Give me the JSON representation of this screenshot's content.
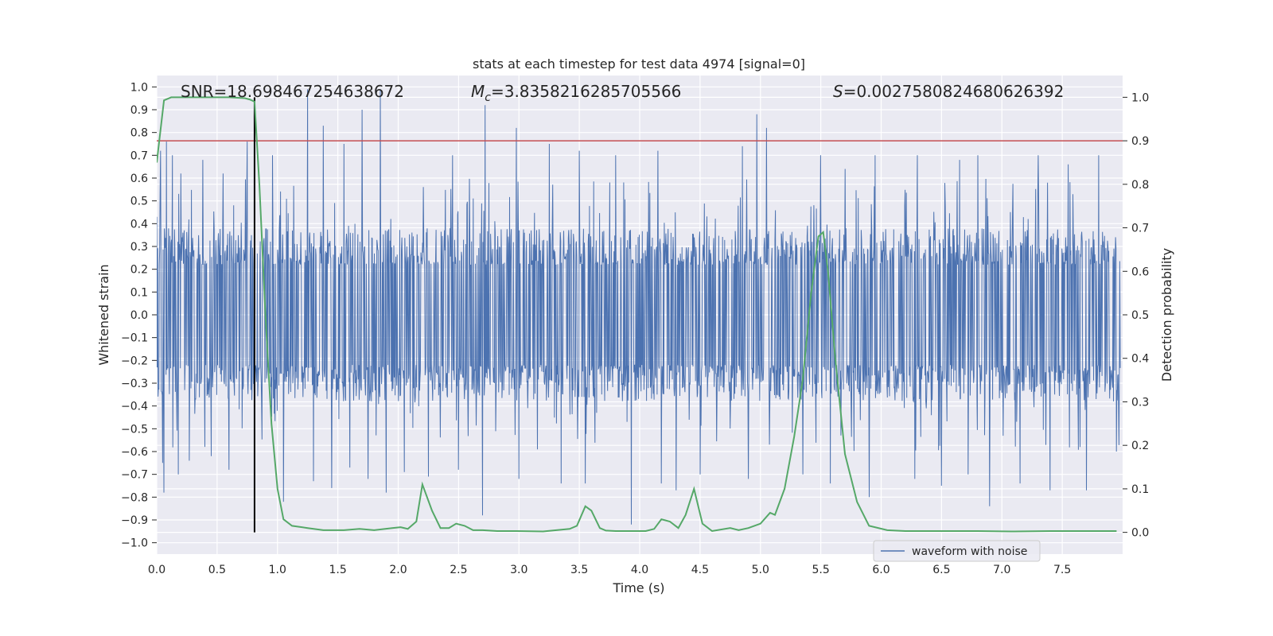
{
  "chart_data": {
    "type": "line",
    "title": "stats at each timestep for test data 4974 [signal=0]",
    "xlabel": "Time (s)",
    "ylabel_left": "Whitened strain",
    "ylabel_right": "Detection probability",
    "xlim": [
      0,
      8.0
    ],
    "ylim_left": [
      -1.05,
      1.05
    ],
    "ylim_right": [
      -0.05,
      1.05
    ],
    "xticks": [
      "0.0",
      "0.5",
      "1.0",
      "1.5",
      "2.0",
      "2.5",
      "3.0",
      "3.5",
      "4.0",
      "4.5",
      "5.0",
      "5.5",
      "6.0",
      "6.5",
      "7.0",
      "7.5"
    ],
    "yticks_left": [
      "−1.0",
      "−0.9",
      "−0.8",
      "−0.7",
      "−0.6",
      "−0.5",
      "−0.4",
      "−0.3",
      "−0.2",
      "−0.1",
      "0.0",
      "0.1",
      "0.2",
      "0.3",
      "0.4",
      "0.5",
      "0.6",
      "0.7",
      "0.8",
      "0.9",
      "1.0"
    ],
    "yticks_right": [
      "0.0",
      "0.1",
      "0.2",
      "0.3",
      "0.4",
      "0.5",
      "0.6",
      "0.7",
      "0.8",
      "0.9",
      "1.0"
    ],
    "grid": true,
    "legend_placement": "lower-right",
    "annotations": {
      "snr": "SNR=18.698467254638672",
      "mc_symbol": "M",
      "mc_subscript": "c",
      "mc_value": "=3.8358216285705566",
      "s_symbol": "S",
      "s_value": "=0.0027580824680626392"
    },
    "threshold_right": 0.9,
    "vertical_marker_x": 0.81,
    "series": [
      {
        "name": "waveform with noise",
        "axis": "left",
        "color": "#4c72b0",
        "spikes_high": [
          [
            0.03,
            0.72
          ],
          [
            0.08,
            0.76
          ],
          [
            0.13,
            0.7
          ],
          [
            0.2,
            0.62
          ],
          [
            0.27,
            0.65
          ],
          [
            0.38,
            0.68
          ],
          [
            0.55,
            0.62
          ],
          [
            0.75,
            0.76
          ],
          [
            0.96,
            0.7
          ],
          [
            1.25,
            0.99
          ],
          [
            1.38,
            0.83
          ],
          [
            1.55,
            0.75
          ],
          [
            1.7,
            0.9
          ],
          [
            1.85,
            0.99
          ],
          [
            2.05,
            0.78
          ],
          [
            2.25,
            0.72
          ],
          [
            2.45,
            0.7
          ],
          [
            2.72,
            0.92
          ],
          [
            2.98,
            0.82
          ],
          [
            3.25,
            0.75
          ],
          [
            3.5,
            0.72
          ],
          [
            3.8,
            0.7
          ],
          [
            4.15,
            0.72
          ],
          [
            4.5,
            0.68
          ],
          [
            4.85,
            0.74
          ],
          [
            4.97,
            0.88
          ],
          [
            5.05,
            0.82
          ],
          [
            5.5,
            0.7
          ],
          [
            5.7,
            0.64
          ],
          [
            5.95,
            0.7
          ],
          [
            6.3,
            0.7
          ],
          [
            6.65,
            0.68
          ],
          [
            6.8,
            0.7
          ],
          [
            7.3,
            0.7
          ],
          [
            7.55,
            0.66
          ],
          [
            7.8,
            0.7
          ]
        ],
        "spikes_low": [
          [
            0.05,
            -0.65
          ],
          [
            0.06,
            -0.78
          ],
          [
            0.18,
            -0.7
          ],
          [
            0.27,
            -0.64
          ],
          [
            0.45,
            -0.62
          ],
          [
            0.6,
            -0.68
          ],
          [
            1.05,
            -0.82
          ],
          [
            1.3,
            -0.73
          ],
          [
            1.45,
            -0.76
          ],
          [
            1.6,
            -0.67
          ],
          [
            1.75,
            -0.72
          ],
          [
            1.9,
            -0.78
          ],
          [
            2.05,
            -0.69
          ],
          [
            2.25,
            -0.71
          ],
          [
            2.5,
            -0.68
          ],
          [
            2.7,
            -0.88
          ],
          [
            3.0,
            -0.72
          ],
          [
            3.35,
            -0.74
          ],
          [
            3.55,
            -0.74
          ],
          [
            3.93,
            -0.92
          ],
          [
            4.18,
            -0.74
          ],
          [
            4.3,
            -0.77
          ],
          [
            4.5,
            -0.7
          ],
          [
            4.9,
            -0.72
          ],
          [
            5.35,
            -0.7
          ],
          [
            5.58,
            -0.74
          ],
          [
            5.9,
            -0.8
          ],
          [
            6.28,
            -0.72
          ],
          [
            6.5,
            -0.75
          ],
          [
            6.72,
            -0.7
          ],
          [
            6.9,
            -0.84
          ],
          [
            7.15,
            -0.74
          ],
          [
            7.4,
            -0.77
          ],
          [
            7.7,
            -0.77
          ],
          [
            7.95,
            -0.6
          ]
        ]
      },
      {
        "name": "Detection probability",
        "axis": "right",
        "color": "#55a868",
        "x": [
          0.0,
          0.06,
          0.12,
          0.2,
          0.4,
          0.6,
          0.73,
          0.77,
          0.81,
          0.85,
          0.9,
          0.95,
          1.0,
          1.05,
          1.12,
          1.25,
          1.38,
          1.55,
          1.68,
          1.8,
          1.95,
          2.02,
          2.08,
          2.15,
          2.2,
          2.28,
          2.35,
          2.42,
          2.48,
          2.55,
          2.62,
          2.7,
          2.82,
          2.98,
          3.2,
          3.42,
          3.48,
          3.55,
          3.6,
          3.67,
          3.72,
          3.8,
          3.9,
          4.05,
          4.12,
          4.18,
          4.25,
          4.32,
          4.38,
          4.45,
          4.52,
          4.6,
          4.75,
          4.82,
          4.9,
          5.0,
          5.08,
          5.12,
          5.2,
          5.28,
          5.35,
          5.42,
          5.48,
          5.52,
          5.56,
          5.62,
          5.7,
          5.8,
          5.9,
          6.05,
          6.2,
          6.4,
          6.6,
          6.8,
          7.1,
          7.4,
          7.95
        ],
        "y": [
          0.85,
          0.993,
          1.0,
          1.0,
          1.0,
          1.0,
          0.998,
          0.995,
          0.99,
          0.8,
          0.5,
          0.25,
          0.1,
          0.03,
          0.015,
          0.01,
          0.005,
          0.005,
          0.008,
          0.005,
          0.01,
          0.012,
          0.008,
          0.025,
          0.11,
          0.05,
          0.01,
          0.01,
          0.02,
          0.015,
          0.005,
          0.005,
          0.003,
          0.003,
          0.002,
          0.008,
          0.015,
          0.06,
          0.05,
          0.01,
          0.004,
          0.003,
          0.003,
          0.003,
          0.008,
          0.03,
          0.025,
          0.01,
          0.04,
          0.1,
          0.02,
          0.003,
          0.01,
          0.005,
          0.01,
          0.02,
          0.045,
          0.04,
          0.1,
          0.22,
          0.35,
          0.55,
          0.68,
          0.69,
          0.6,
          0.4,
          0.18,
          0.07,
          0.015,
          0.005,
          0.003,
          0.003,
          0.003,
          0.003,
          0.002,
          0.003,
          0.003
        ]
      }
    ]
  }
}
